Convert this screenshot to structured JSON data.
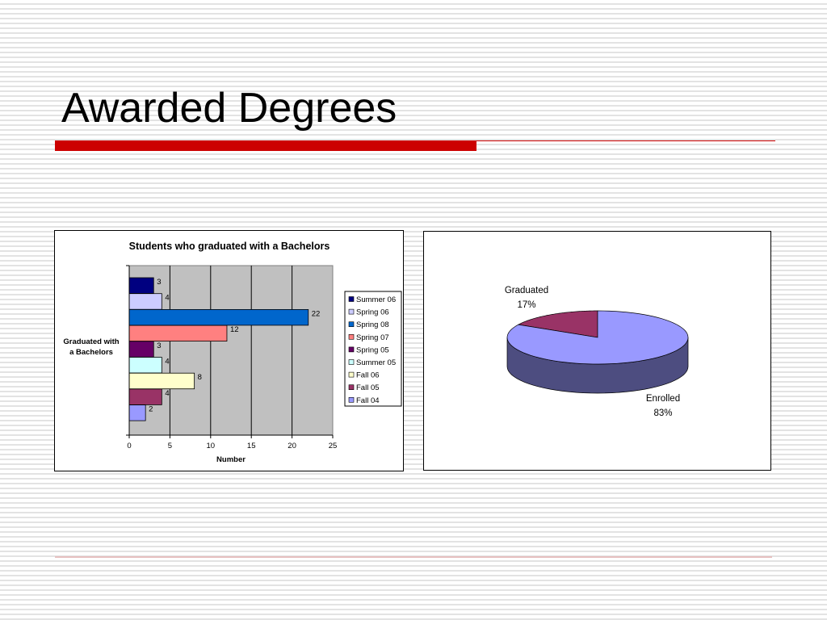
{
  "slide": {
    "title": "Awarded Degrees"
  },
  "colors": {
    "accent": "#cc0000",
    "plot_area": "#c0c0c0"
  },
  "chart_data": [
    {
      "type": "bar",
      "orientation": "horizontal",
      "title": "Students who graduated with a Bachelors",
      "xlabel": "Number",
      "ylabel": "Graduated with a Bachelors",
      "xlim": [
        0,
        25
      ],
      "x_ticks": [
        0,
        5,
        10,
        15,
        20,
        25
      ],
      "grid": true,
      "legend_position": "right",
      "series": [
        {
          "name": "Summer 06",
          "value": 3,
          "color": "#000080"
        },
        {
          "name": "Spring 06",
          "value": 4,
          "color": "#ccccff"
        },
        {
          "name": "Spring 08",
          "value": 22,
          "color": "#0066cc"
        },
        {
          "name": "Spring 07",
          "value": 12,
          "color": "#ff8080"
        },
        {
          "name": "Spring 05",
          "value": 3,
          "color": "#660066"
        },
        {
          "name": "Summer 05",
          "value": 4,
          "color": "#ccffff"
        },
        {
          "name": "Fall 06",
          "value": 8,
          "color": "#ffffcc"
        },
        {
          "name": "Fall 05",
          "value": 4,
          "color": "#993366"
        },
        {
          "name": "Fall 04",
          "value": 2,
          "color": "#9999ff"
        }
      ]
    },
    {
      "type": "pie",
      "style": "3d",
      "slices": [
        {
          "name": "Graduated",
          "value": 17,
          "label": "17%",
          "color": "#993366",
          "side_color": "#5c1f3d"
        },
        {
          "name": "Enrolled",
          "value": 83,
          "label": "83%",
          "color": "#9999ff",
          "side_color": "#4d4d80"
        }
      ]
    }
  ]
}
